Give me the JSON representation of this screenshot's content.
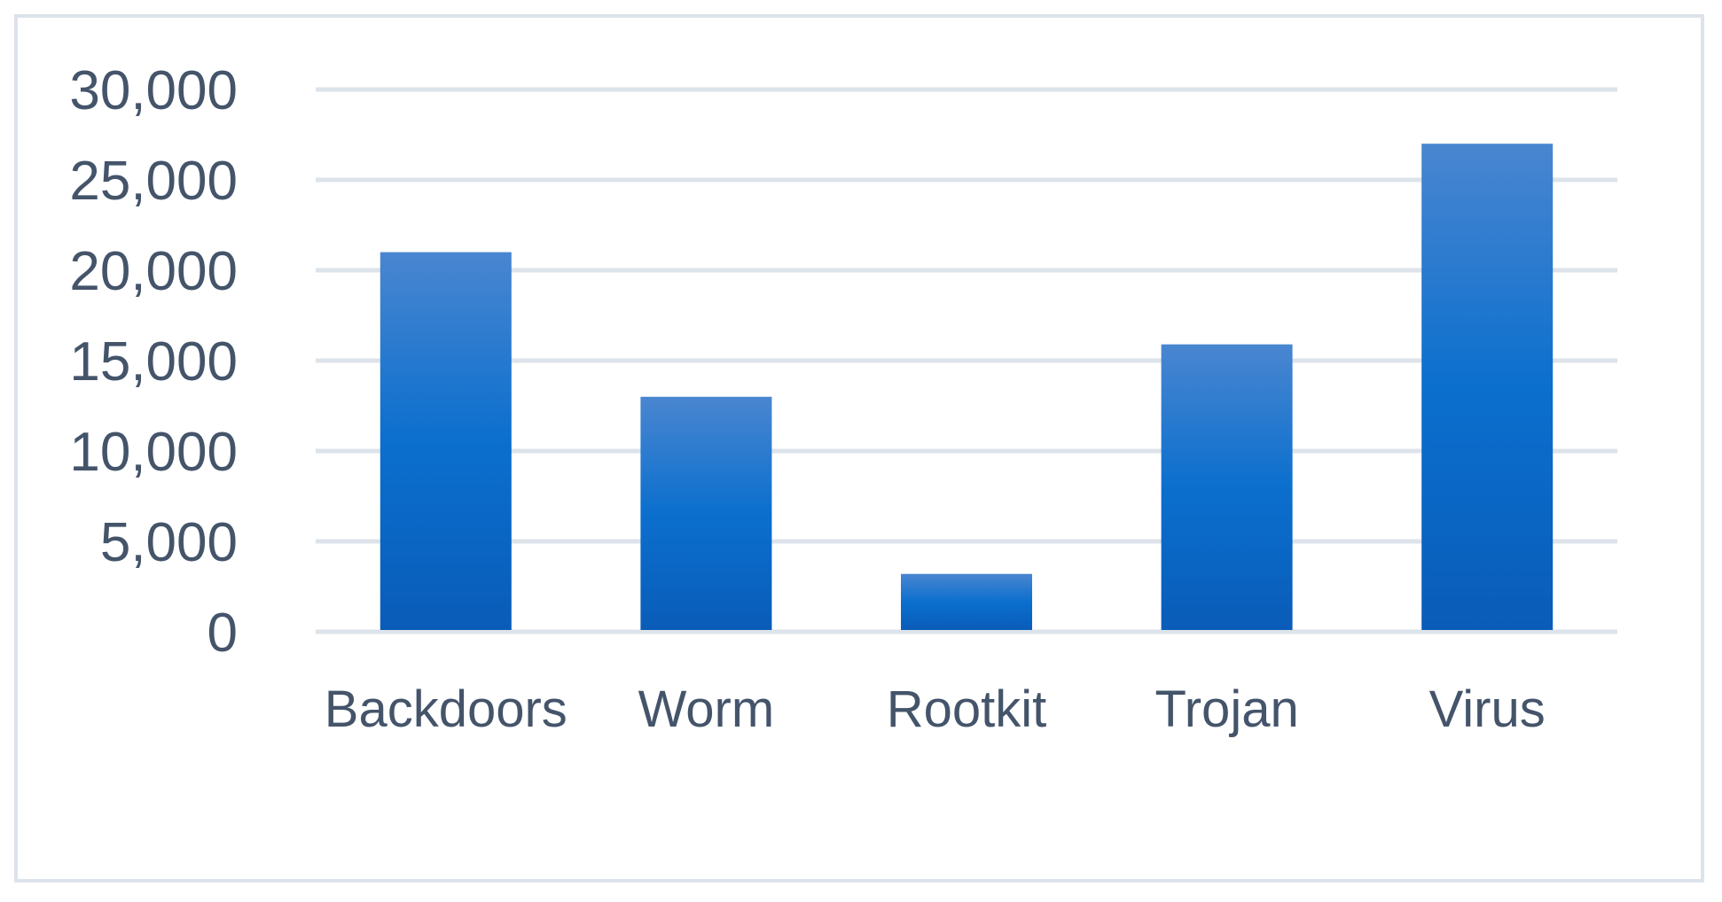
{
  "chart_data": {
    "type": "bar",
    "title": "",
    "xlabel": "",
    "ylabel": "",
    "categories": [
      "Backdoors",
      "Worm",
      "Rootkit",
      "Trojan",
      "Virus"
    ],
    "values": [
      21000,
      13000,
      3200,
      15900,
      27000
    ],
    "ylim": [
      0,
      30000
    ],
    "yticks": [
      0,
      5000,
      10000,
      15000,
      20000,
      25000,
      30000
    ],
    "ytick_labels": [
      "0",
      "5,000",
      "10,000",
      "15,000",
      "20,000",
      "25,000",
      "30,000"
    ],
    "grid": true,
    "legend": "none",
    "bar_color_top": "#4a86d0",
    "bar_color_mid": "#0b6fce",
    "bar_color_bottom": "#0a5cb8",
    "grid_color": "#dde3ea",
    "text_color": "#44546a"
  }
}
